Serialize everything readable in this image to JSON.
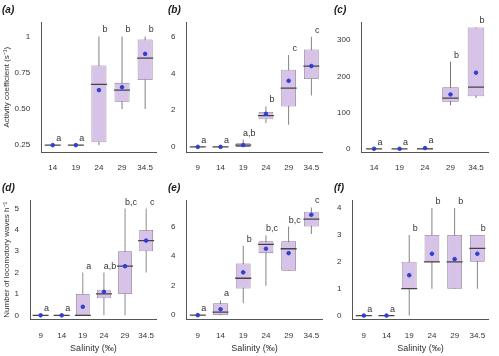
{
  "chart_data": [
    {
      "type": "boxplot",
      "title": "(a)",
      "y_label": "Activity coefficient (s⁻¹)",
      "color": "#d8c3e8",
      "categories": [
        "14",
        "19",
        "24",
        "29",
        "34.5"
      ],
      "boxes": [
        {
          "min": 0.25,
          "q1": 0.25,
          "median": 0.25,
          "q3": 0.25,
          "max": 0.25,
          "mean": 0.25
        },
        {
          "min": 0.25,
          "q1": 0.25,
          "median": 0.25,
          "q3": 0.25,
          "max": 0.25,
          "mean": 0.25
        },
        {
          "min": 0.25,
          "q1": 0.27,
          "median": 0.67,
          "q3": 0.8,
          "max": 1.0,
          "mean": 0.63
        },
        {
          "min": 0.5,
          "q1": 0.55,
          "median": 0.63,
          "q3": 0.68,
          "max": 1.0,
          "mean": 0.65
        },
        {
          "min": 0.5,
          "q1": 0.7,
          "median": 0.85,
          "q3": 0.98,
          "max": 1.0,
          "mean": 0.88
        }
      ],
      "letters": [
        "a",
        "a",
        "b",
        "b",
        "b"
      ],
      "ylim": [
        0.2,
        1.1
      ],
      "yticks": [
        0.25,
        {
          "value": 0.5,
          "label": "0.50"
        },
        0.75,
        1
      ]
    },
    {
      "type": "boxplot",
      "title": "(b)",
      "color": "#d8c3e8",
      "categories": [
        "9",
        "14",
        "19",
        "24",
        "29",
        "34.5"
      ],
      "boxes": [
        {
          "min": 0,
          "q1": 0,
          "median": 0,
          "q3": 0,
          "max": 0,
          "mean": 0
        },
        {
          "min": 0,
          "q1": 0,
          "median": 0,
          "q3": 0,
          "max": 0,
          "mean": 0
        },
        {
          "min": 0,
          "q1": 0,
          "median": 0.1,
          "q3": 0.2,
          "max": 0.4,
          "mean": 0.1
        },
        {
          "min": 1.3,
          "q1": 1.5,
          "median": 1.7,
          "q3": 1.9,
          "max": 2.2,
          "mean": 1.8
        },
        {
          "min": 1.2,
          "q1": 2.2,
          "median": 3.2,
          "q3": 4.2,
          "max": 5.0,
          "mean": 3.6
        },
        {
          "min": 2.8,
          "q1": 3.7,
          "median": 4.4,
          "q3": 5.3,
          "max": 6.0,
          "mean": 4.4
        }
      ],
      "letters": [
        "a",
        "a",
        "a,b",
        "b",
        "c",
        "c"
      ],
      "ylim": [
        -0.3,
        6.8
      ],
      "yticks": [
        0,
        2,
        4,
        6
      ]
    },
    {
      "type": "boxplot",
      "title": "(c)",
      "color": "#d8c3e8",
      "categories": [
        "14",
        "19",
        "24",
        "29",
        "34.5"
      ],
      "boxes": [
        {
          "min": 0,
          "q1": 0,
          "median": 0,
          "q3": 0,
          "max": 0,
          "mean": 0
        },
        {
          "min": 0,
          "q1": 0,
          "median": 0,
          "q3": 0,
          "max": 0,
          "mean": 0
        },
        {
          "min": 0,
          "q1": 0,
          "median": 0,
          "q3": 2,
          "max": 5,
          "mean": 2
        },
        {
          "min": 120,
          "q1": 130,
          "median": 140,
          "q3": 170,
          "max": 240,
          "mean": 150
        },
        {
          "min": 140,
          "q1": 145,
          "median": 170,
          "q3": 335,
          "max": 335,
          "mean": 210
        }
      ],
      "letters": [
        "a",
        "a",
        "a",
        "b",
        "b"
      ],
      "ylim": [
        -10,
        350
      ],
      "yticks": [
        0,
        100,
        200,
        300
      ]
    },
    {
      "type": "boxplot",
      "title": "(d)",
      "y_label": "Number of locomotory waves h⁻¹",
      "x_label": "Salinity (‰)",
      "color": "#d8c3e8",
      "categories": [
        "9",
        "14",
        "19",
        "24",
        "29",
        "34.5"
      ],
      "boxes": [
        {
          "min": 0,
          "q1": 0,
          "median": 0,
          "q3": 0,
          "max": 0,
          "mean": 0
        },
        {
          "min": 0,
          "q1": 0,
          "median": 0,
          "q3": 0,
          "max": 0,
          "mean": 0
        },
        {
          "min": 0,
          "q1": 0,
          "median": 0,
          "q3": 1,
          "max": 2,
          "mean": 0.4
        },
        {
          "min": 0,
          "q1": 0.8,
          "median": 1,
          "q3": 1.2,
          "max": 2,
          "mean": 1.1
        },
        {
          "min": 0,
          "q1": 1,
          "median": 2.3,
          "q3": 3,
          "max": 5,
          "mean": 2.3
        },
        {
          "min": 2,
          "q1": 3,
          "median": 3.5,
          "q3": 4,
          "max": 5,
          "mean": 3.5
        }
      ],
      "letters": [
        "a",
        "a",
        "a",
        "a,b",
        "b,c",
        "c"
      ],
      "ylim": [
        -0.2,
        5.4
      ],
      "yticks": [
        0,
        1,
        2,
        3,
        4,
        5
      ]
    },
    {
      "type": "boxplot",
      "title": "(e)",
      "x_label": "Salinity (‰)",
      "color": "#d8c3e8",
      "categories": [
        "9",
        "14",
        "19",
        "24",
        "29",
        "34.5"
      ],
      "boxes": [
        {
          "min": 0,
          "q1": 0,
          "median": 0,
          "q3": 0,
          "max": 0,
          "mean": 0
        },
        {
          "min": 0,
          "q1": 0,
          "median": 0.2,
          "q3": 0.8,
          "max": 1.0,
          "mean": 0.4
        },
        {
          "min": 0.8,
          "q1": 1.8,
          "median": 2.5,
          "q3": 3.5,
          "max": 4.7,
          "mean": 2.9
        },
        {
          "min": 2,
          "q1": 4.2,
          "median": 4.8,
          "q3": 5,
          "max": 5.4,
          "mean": 4.5
        },
        {
          "min": 3,
          "q1": 3,
          "median": 4.5,
          "q3": 5,
          "max": 6,
          "mean": 4.2
        },
        {
          "min": 5.5,
          "q1": 6,
          "median": 6.5,
          "q3": 7,
          "max": 7.3,
          "mean": 6.8
        }
      ],
      "letters": [
        "a",
        "a",
        "b",
        "b,c",
        "b,c",
        "c"
      ],
      "ylim": [
        -0.3,
        7.8
      ],
      "yticks": [
        0,
        2,
        4,
        6
      ]
    },
    {
      "type": "boxplot",
      "title": "(f)",
      "x_label": "Salinity (‰)",
      "color": "#d8c3e8",
      "categories": [
        "9",
        "14",
        "19",
        "24",
        "29",
        "34.5"
      ],
      "boxes": [
        {
          "min": 0,
          "q1": 0,
          "median": 0,
          "q3": 0,
          "max": 0,
          "mean": 0
        },
        {
          "min": 0,
          "q1": 0,
          "median": 0,
          "q3": 0,
          "max": 0,
          "mean": 0
        },
        {
          "min": 0,
          "q1": 1,
          "median": 1,
          "q3": 2,
          "max": 3,
          "mean": 1.5
        },
        {
          "min": 1,
          "q1": 2,
          "median": 2,
          "q3": 3,
          "max": 4,
          "mean": 2.3
        },
        {
          "min": 1,
          "q1": 1,
          "median": 2,
          "q3": 3,
          "max": 4,
          "mean": 2.1
        },
        {
          "min": 1,
          "q1": 2,
          "median": 2.5,
          "q3": 3,
          "max": 3,
          "mean": 2.3
        }
      ],
      "letters": [
        "a",
        "a",
        "b",
        "b",
        "b",
        "b"
      ],
      "ylim": [
        -0.15,
        4.3
      ],
      "yticks": [
        0,
        1,
        2,
        3,
        4
      ]
    }
  ]
}
